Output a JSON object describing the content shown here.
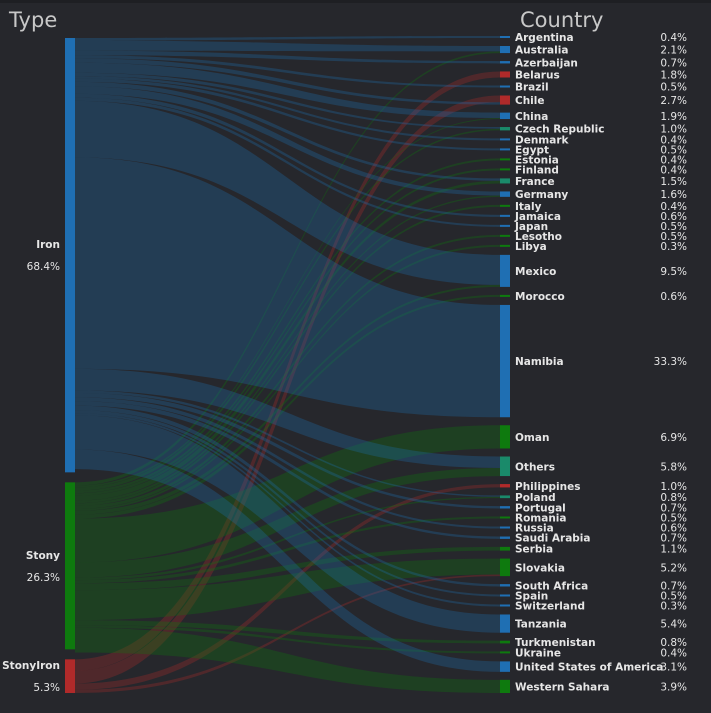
{
  "headers": {
    "left": "Type",
    "right": "Country"
  },
  "chart_data": {
    "type": "sankey",
    "sources": [
      {
        "name": "Iron",
        "pct": "68.4%",
        "value": 68.4,
        "color": "#1f6fb3"
      },
      {
        "name": "Stony",
        "pct": "26.3%",
        "value": 26.3,
        "color": "#0e7a0e"
      },
      {
        "name": "StonyIron",
        "pct": "5.3%",
        "value": 5.3,
        "color": "#b02a2a"
      }
    ],
    "targets": [
      {
        "name": "Argentina",
        "pct": "0.4%",
        "value": 0.4,
        "color": "#1f6fb3"
      },
      {
        "name": "Australia",
        "pct": "2.1%",
        "value": 2.1,
        "color": "#1f6fb3"
      },
      {
        "name": "Azerbaijan",
        "pct": "0.7%",
        "value": 0.7,
        "color": "#1f6fb3"
      },
      {
        "name": "Belarus",
        "pct": "1.8%",
        "value": 1.8,
        "color": "#b02a2a"
      },
      {
        "name": "Brazil",
        "pct": "0.5%",
        "value": 0.5,
        "color": "#1f6fb3"
      },
      {
        "name": "Chile",
        "pct": "2.7%",
        "value": 2.7,
        "color": "#b02a2a"
      },
      {
        "name": "China",
        "pct": "1.9%",
        "value": 1.9,
        "color": "#1f6fb3"
      },
      {
        "name": "Czech Republic",
        "pct": "1.0%",
        "value": 1.0,
        "color": "#1a8a6a"
      },
      {
        "name": "Denmark",
        "pct": "0.4%",
        "value": 0.4,
        "color": "#1f6fb3"
      },
      {
        "name": "Egypt",
        "pct": "0.5%",
        "value": 0.5,
        "color": "#1f6fb3"
      },
      {
        "name": "Estonia",
        "pct": "0.4%",
        "value": 0.4,
        "color": "#0e7a0e"
      },
      {
        "name": "Finland",
        "pct": "0.4%",
        "value": 0.4,
        "color": "#0e7a0e"
      },
      {
        "name": "France",
        "pct": "1.5%",
        "value": 1.5,
        "color": "#1a8a6a"
      },
      {
        "name": "Germany",
        "pct": "1.6%",
        "value": 1.6,
        "color": "#1f6fb3"
      },
      {
        "name": "Italy",
        "pct": "0.4%",
        "value": 0.4,
        "color": "#0e7a0e"
      },
      {
        "name": "Jamaica",
        "pct": "0.6%",
        "value": 0.6,
        "color": "#1f6fb3"
      },
      {
        "name": "Japan",
        "pct": "0.5%",
        "value": 0.5,
        "color": "#1f6fb3"
      },
      {
        "name": "Lesotho",
        "pct": "0.5%",
        "value": 0.5,
        "color": "#0e7a0e"
      },
      {
        "name": "Libya",
        "pct": "0.3%",
        "value": 0.3,
        "color": "#0e7a0e"
      },
      {
        "name": "Mexico",
        "pct": "9.5%",
        "value": 9.5,
        "color": "#1f6fb3"
      },
      {
        "name": "Morocco",
        "pct": "0.6%",
        "value": 0.6,
        "color": "#0e7a0e"
      },
      {
        "name": "Namibia",
        "pct": "33.3%",
        "value": 33.3,
        "color": "#1f6fb3"
      },
      {
        "name": "Oman",
        "pct": "6.9%",
        "value": 6.9,
        "color": "#0e7a0e"
      },
      {
        "name": "Others",
        "pct": "5.8%",
        "value": 5.8,
        "color": "#1a8a6a"
      },
      {
        "name": "Philippines",
        "pct": "1.0%",
        "value": 1.0,
        "color": "#b02a2a"
      },
      {
        "name": "Poland",
        "pct": "0.8%",
        "value": 0.8,
        "color": "#1a8a6a"
      },
      {
        "name": "Portugal",
        "pct": "0.7%",
        "value": 0.7,
        "color": "#1f6fb3"
      },
      {
        "name": "Romania",
        "pct": "0.5%",
        "value": 0.5,
        "color": "#0e7a0e"
      },
      {
        "name": "Russia",
        "pct": "0.6%",
        "value": 0.6,
        "color": "#1f6fb3"
      },
      {
        "name": "Saudi Arabia",
        "pct": "0.7%",
        "value": 0.7,
        "color": "#1f6fb3"
      },
      {
        "name": "Serbia",
        "pct": "1.1%",
        "value": 1.1,
        "color": "#0e7a0e"
      },
      {
        "name": "Slovakia",
        "pct": "5.2%",
        "value": 5.2,
        "color": "#0e7a0e"
      },
      {
        "name": "South Africa",
        "pct": "0.7%",
        "value": 0.7,
        "color": "#1f6fb3"
      },
      {
        "name": "Spain",
        "pct": "0.5%",
        "value": 0.5,
        "color": "#1f6fb3"
      },
      {
        "name": "Switzerland",
        "pct": "0.3%",
        "value": 0.3,
        "color": "#1f6fb3"
      },
      {
        "name": "Tanzania",
        "pct": "5.4%",
        "value": 5.4,
        "color": "#1f6fb3"
      },
      {
        "name": "Turkmenistan",
        "pct": "0.8%",
        "value": 0.8,
        "color": "#0e7a0e"
      },
      {
        "name": "Ukraine",
        "pct": "0.4%",
        "value": 0.4,
        "color": "#0e7a0e"
      },
      {
        "name": "United States of America",
        "pct": "3.1%",
        "value": 3.1,
        "color": "#1f6fb3"
      },
      {
        "name": "Western Sahara",
        "pct": "3.9%",
        "value": 3.9,
        "color": "#0e7a0e"
      }
    ],
    "links": [
      {
        "source": "Iron",
        "target": "Argentina",
        "value": 0.4
      },
      {
        "source": "Iron",
        "target": "Australia",
        "value": 1.6
      },
      {
        "source": "Stony",
        "target": "Australia",
        "value": 0.5
      },
      {
        "source": "Iron",
        "target": "Azerbaijan",
        "value": 0.7
      },
      {
        "source": "StonyIron",
        "target": "Belarus",
        "value": 1.8
      },
      {
        "source": "Iron",
        "target": "Brazil",
        "value": 0.5
      },
      {
        "source": "StonyIron",
        "target": "Chile",
        "value": 2.0
      },
      {
        "source": "Iron",
        "target": "Chile",
        "value": 0.7
      },
      {
        "source": "Iron",
        "target": "China",
        "value": 1.6
      },
      {
        "source": "Stony",
        "target": "China",
        "value": 0.3
      },
      {
        "source": "Iron",
        "target": "Czech Republic",
        "value": 0.5
      },
      {
        "source": "Stony",
        "target": "Czech Republic",
        "value": 0.5
      },
      {
        "source": "Iron",
        "target": "Denmark",
        "value": 0.4
      },
      {
        "source": "Iron",
        "target": "Egypt",
        "value": 0.5
      },
      {
        "source": "Stony",
        "target": "Estonia",
        "value": 0.4
      },
      {
        "source": "Stony",
        "target": "Finland",
        "value": 0.4
      },
      {
        "source": "Iron",
        "target": "France",
        "value": 0.7
      },
      {
        "source": "Stony",
        "target": "France",
        "value": 0.8
      },
      {
        "source": "Iron",
        "target": "Germany",
        "value": 1.2
      },
      {
        "source": "Stony",
        "target": "Germany",
        "value": 0.4
      },
      {
        "source": "Stony",
        "target": "Italy",
        "value": 0.4
      },
      {
        "source": "Iron",
        "target": "Jamaica",
        "value": 0.6
      },
      {
        "source": "Iron",
        "target": "Japan",
        "value": 0.5
      },
      {
        "source": "Stony",
        "target": "Lesotho",
        "value": 0.5
      },
      {
        "source": "Stony",
        "target": "Libya",
        "value": 0.3
      },
      {
        "source": "Iron",
        "target": "Mexico",
        "value": 8.9
      },
      {
        "source": "Stony",
        "target": "Mexico",
        "value": 0.6
      },
      {
        "source": "Stony",
        "target": "Morocco",
        "value": 0.6
      },
      {
        "source": "Iron",
        "target": "Namibia",
        "value": 33.3
      },
      {
        "source": "Stony",
        "target": "Oman",
        "value": 6.9
      },
      {
        "source": "Iron",
        "target": "Others",
        "value": 3.4
      },
      {
        "source": "Stony",
        "target": "Others",
        "value": 2.4
      },
      {
        "source": "StonyIron",
        "target": "Philippines",
        "value": 1.0
      },
      {
        "source": "Iron",
        "target": "Poland",
        "value": 0.4
      },
      {
        "source": "Stony",
        "target": "Poland",
        "value": 0.4
      },
      {
        "source": "Iron",
        "target": "Portugal",
        "value": 0.7
      },
      {
        "source": "Stony",
        "target": "Romania",
        "value": 0.5
      },
      {
        "source": "Iron",
        "target": "Russia",
        "value": 0.6
      },
      {
        "source": "Iron",
        "target": "Saudi Arabia",
        "value": 0.7
      },
      {
        "source": "Stony",
        "target": "Serbia",
        "value": 1.1
      },
      {
        "source": "Stony",
        "target": "Slovakia",
        "value": 4.7
      },
      {
        "source": "StonyIron",
        "target": "Slovakia",
        "value": 0.5
      },
      {
        "source": "Iron",
        "target": "South Africa",
        "value": 0.7
      },
      {
        "source": "Iron",
        "target": "Spain",
        "value": 0.5
      },
      {
        "source": "Iron",
        "target": "Switzerland",
        "value": 0.3
      },
      {
        "source": "Iron",
        "target": "Tanzania",
        "value": 5.4
      },
      {
        "source": "Stony",
        "target": "Turkmenistan",
        "value": 0.8
      },
      {
        "source": "Stony",
        "target": "Ukraine",
        "value": 0.4
      },
      {
        "source": "Iron",
        "target": "United States of America",
        "value": 3.1
      },
      {
        "source": "Stony",
        "target": "Western Sahara",
        "value": 3.9
      }
    ]
  }
}
